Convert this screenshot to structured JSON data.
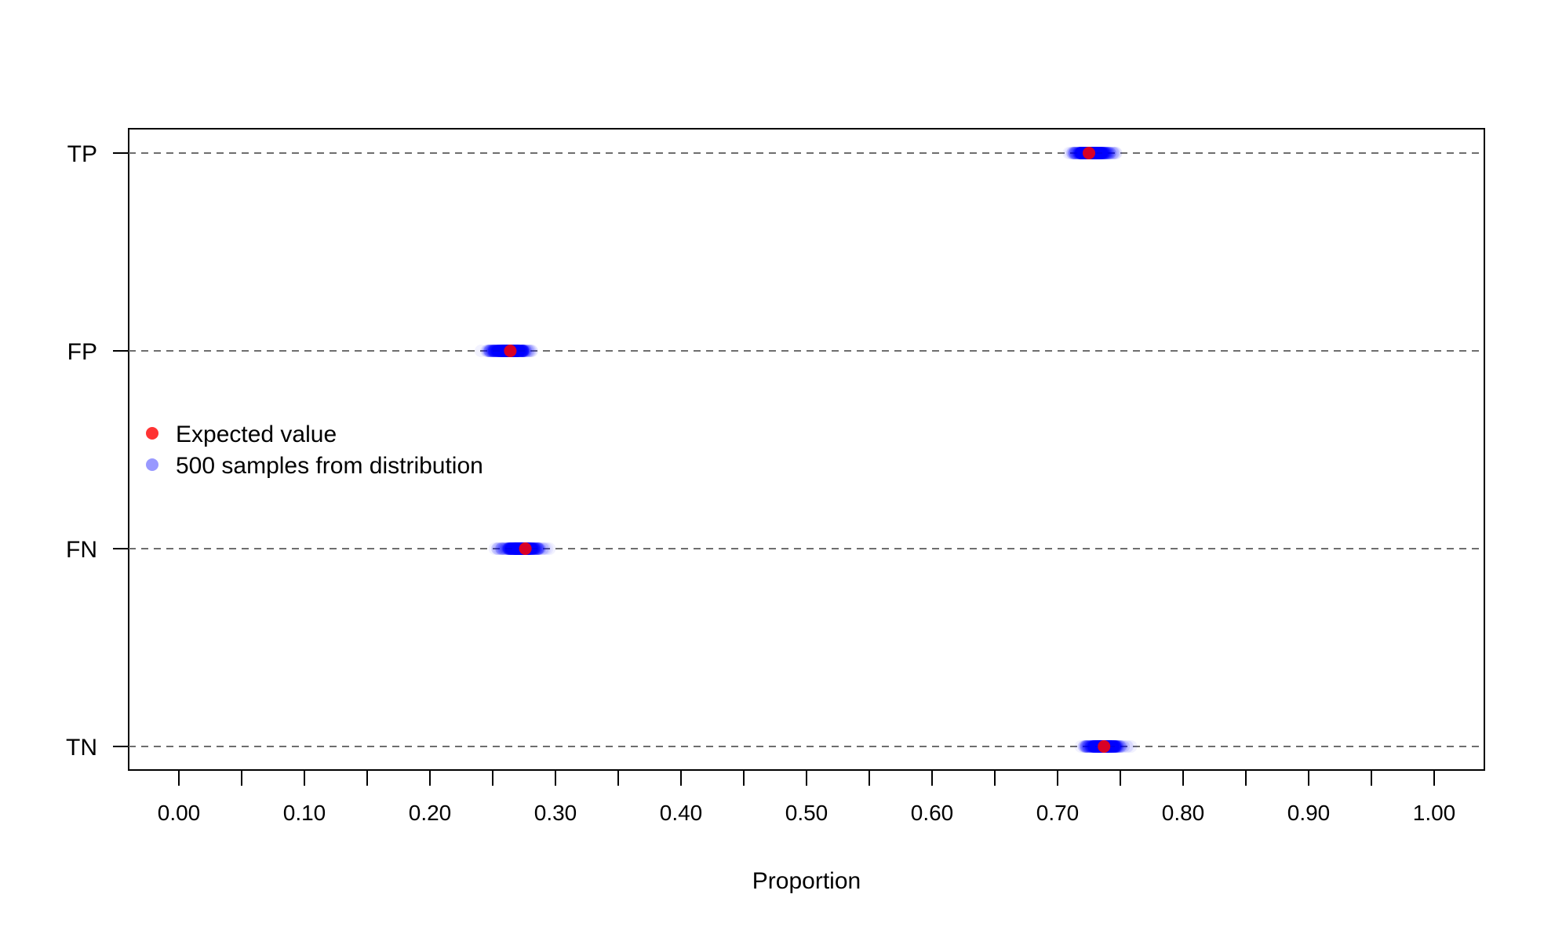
{
  "chart_data": {
    "type": "scatter",
    "title": "",
    "xlabel": "Proportion",
    "ylabel": "",
    "xlim": [
      -0.04,
      1.04
    ],
    "x_ticks": [
      0.0,
      0.05,
      0.1,
      0.15,
      0.2,
      0.25,
      0.3,
      0.35,
      0.4,
      0.45,
      0.5,
      0.55,
      0.6,
      0.65,
      0.7,
      0.75,
      0.8,
      0.85,
      0.9,
      0.95,
      1.0
    ],
    "x_tick_labels": [
      "0.00",
      "0.10",
      "0.20",
      "0.30",
      "0.40",
      "0.50",
      "0.60",
      "0.70",
      "0.80",
      "0.90",
      "1.00"
    ],
    "x_tick_label_values": [
      0.0,
      0.1,
      0.2,
      0.3,
      0.4,
      0.5,
      0.6,
      0.7,
      0.8,
      0.9,
      1.0
    ],
    "categories": [
      "TP",
      "FP",
      "FN",
      "TN"
    ],
    "grid": "dashed horizontal at each category",
    "legend": {
      "placement": "left",
      "entries": [
        "Expected value",
        "500 samples from distribution"
      ]
    },
    "series": [
      {
        "name": "Expected value",
        "color": "#ff0000",
        "points": [
          {
            "category": "TP",
            "x": 0.725
          },
          {
            "category": "FP",
            "x": 0.264
          },
          {
            "category": "FN",
            "x": 0.276
          },
          {
            "category": "TN",
            "x": 0.737
          }
        ]
      },
      {
        "name": "500 samples from distribution",
        "color": "#0000ff",
        "samples": 500,
        "spread": [
          {
            "category": "TP",
            "center": 0.727,
            "min": 0.7,
            "max": 0.76
          },
          {
            "category": "FP",
            "center": 0.263,
            "min": 0.23,
            "max": 0.29
          },
          {
            "category": "FN",
            "center": 0.273,
            "min": 0.24,
            "max": 0.3
          },
          {
            "category": "TN",
            "center": 0.737,
            "min": 0.71,
            "max": 0.77
          }
        ]
      }
    ]
  }
}
